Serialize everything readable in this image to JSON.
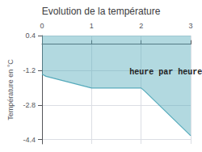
{
  "chart_data": {
    "type": "area",
    "title": "Evolution de la température",
    "ylabel": "Température en °C",
    "annotation": {
      "text": "heure par heure",
      "x": 2.5,
      "y": -1.3
    },
    "x": [
      0,
      0.08,
      1.0,
      2.0,
      2.08,
      3.0
    ],
    "values": [
      -1.38,
      -1.48,
      -2.02,
      -2.02,
      -2.18,
      -4.22
    ],
    "color": "#55aabb",
    "xlim": [
      0,
      3
    ],
    "xticks": [
      0,
      1,
      2,
      3
    ],
    "ylim": [
      -4.6,
      0.4
    ],
    "yticks": [
      0.4,
      -1.2,
      -2.8,
      -4.4
    ],
    "grid": true
  }
}
